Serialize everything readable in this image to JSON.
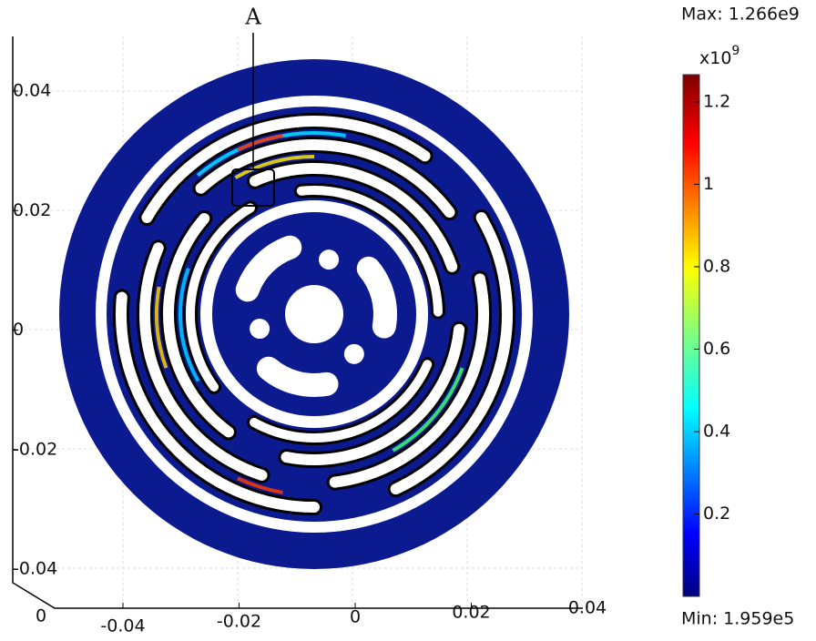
{
  "figure": {
    "annotation": "A",
    "colorbar": {
      "max_label": "Max: 1.266e9",
      "min_label": "Min: 1.959e5",
      "exponent_base": "x10",
      "exponent_power": "9",
      "clim": [
        0.0001959,
        1.266
      ],
      "ticks": [
        0.2,
        0.4,
        0.6,
        0.8,
        1,
        1.2
      ]
    },
    "axes": {
      "yticks": [
        0.04,
        0.02,
        0,
        -0.02,
        -0.04
      ],
      "xticks": [
        -0.04,
        -0.02,
        0,
        0.02,
        0.04
      ],
      "zticks": [
        0
      ]
    }
  }
}
